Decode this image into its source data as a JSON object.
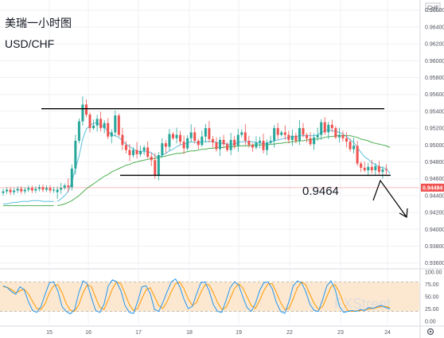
{
  "header": {
    "title": "美瑞一小时图",
    "pair": "USD/CHF",
    "currency_tag": "CHF"
  },
  "annotation": {
    "level_label": "0.9464"
  },
  "last_price_badge": "0.94494",
  "stoch_axis_ticks": [
    "100.00",
    "75.00",
    "50.00",
    "25.00",
    "0.00"
  ],
  "watermark": "FXStreet",
  "colors": {
    "bull": "#26a69a",
    "bear": "#ef5350",
    "ma_fast": "#5bc0de",
    "ma_slow": "#4caf50",
    "stoch_k": "#2196f3",
    "stoch_d": "#ff9800",
    "stoch_band": "#fbe4c8",
    "sr_line": "#000000",
    "price_line": "#ef5350"
  },
  "chart_data": [
    {
      "type": "candlestick",
      "title": "美瑞一小时图",
      "subtitle": "USD/CHF",
      "xlabel": "",
      "ylabel": "",
      "x_ticks": [
        "15",
        "16",
        "17",
        "18",
        "19",
        "22",
        "23",
        "24"
      ],
      "y_ticks": [
        "0.96600",
        "0.96400",
        "0.96200",
        "0.96000",
        "0.95800",
        "0.95600",
        "0.95400",
        "0.95200",
        "0.95000",
        "0.94800",
        "0.94600",
        "0.94400",
        "0.94200",
        "0.94000",
        "0.93800",
        "0.93600"
      ],
      "ylim": [
        0.9355,
        0.9672
      ],
      "grid": true,
      "series": [
        {
          "name": "",
          "kind": "close",
          "values": [
            0.9447,
            0.9449,
            0.9452,
            0.945,
            0.9472,
            0.9505,
            0.9528,
            0.9548,
            0.9536,
            0.952,
            0.9523,
            0.9531,
            0.952,
            0.9526,
            0.951,
            0.9515,
            0.9535,
            0.9512,
            0.95,
            0.9494,
            0.9488,
            0.9494,
            0.9489,
            0.9493,
            0.9497,
            0.9486,
            0.9482,
            0.9464,
            0.9488,
            0.9502,
            0.9498,
            0.9513,
            0.9508,
            0.9512,
            0.9504,
            0.9496,
            0.9508,
            0.9515,
            0.9505,
            0.95,
            0.951,
            0.952,
            0.9507,
            0.9503,
            0.9495,
            0.9506,
            0.9501,
            0.9494,
            0.9506,
            0.9499,
            0.9512,
            0.9515,
            0.9505,
            0.95,
            0.9497,
            0.9503,
            0.9505,
            0.9494,
            0.9503,
            0.9505,
            0.952,
            0.9512,
            0.9515,
            0.9512,
            0.9506,
            0.9511,
            0.9505,
            0.952,
            0.9512,
            0.9508,
            0.9501,
            0.9509,
            0.9512,
            0.9527,
            0.9515,
            0.9524,
            0.952,
            0.9509,
            0.9512,
            0.9508,
            0.9504,
            0.9495,
            0.9499,
            0.9478,
            0.9473,
            0.947,
            0.9474,
            0.947,
            0.9475,
            0.9468,
            0.9471,
            0.947,
            0.9449
          ]
        },
        {
          "name": "",
          "kind": "ma_fast",
          "values": [
            0.9433,
            0.9436,
            0.944,
            0.9445,
            0.9456,
            0.9472,
            0.9487,
            0.9507,
            0.9519,
            0.9523,
            0.9526,
            0.9526,
            0.9524,
            0.9521,
            0.9516,
            0.9512,
            0.9511,
            0.9509,
            0.9505,
            0.9501,
            0.9498,
            0.9495,
            0.9493,
            0.9492,
            0.9492,
            0.9492,
            0.9491,
            0.9487,
            0.9485,
            0.9488,
            0.949,
            0.9493,
            0.9495,
            0.9498,
            0.95,
            0.9501,
            0.9502,
            0.9504,
            0.9503,
            0.9503,
            0.9504,
            0.9504,
            0.9504,
            0.9504,
            0.9503,
            0.9502,
            0.9502,
            0.9501,
            0.9501,
            0.9501,
            0.9503,
            0.9504,
            0.9504,
            0.9504,
            0.9504,
            0.9503,
            0.9502,
            0.9502,
            0.9502,
            0.9503,
            0.9505,
            0.9506,
            0.9507,
            0.9508,
            0.9509,
            0.951,
            0.951,
            0.9511,
            0.9511,
            0.9511,
            0.9511,
            0.9511,
            0.9512,
            0.9515,
            0.9517,
            0.9518,
            0.9517,
            0.9516,
            0.9515,
            0.9513,
            0.951,
            0.9506,
            0.9503,
            0.9497,
            0.9491,
            0.9486,
            0.9483,
            0.9479,
            0.9477,
            0.9474,
            0.9473,
            0.9472,
            0.9466
          ]
        },
        {
          "name": "",
          "kind": "ma_slow",
          "values": [
            0.9428,
            0.9429,
            0.943,
            0.9432,
            0.9434,
            0.9437,
            0.944,
            0.9444,
            0.9448,
            0.9451,
            0.9454,
            0.9457,
            0.946,
            0.9463,
            0.9465,
            0.9468,
            0.947,
            0.9472,
            0.9474,
            0.9476,
            0.9477,
            0.9479,
            0.948,
            0.9481,
            0.9482,
            0.9483,
            0.9484,
            0.9484,
            0.9485,
            0.9486,
            0.9487,
            0.9488,
            0.9489,
            0.949,
            0.949,
            0.9491,
            0.9492,
            0.9493,
            0.9493,
            0.9494,
            0.9495,
            0.9495,
            0.9496,
            0.9496,
            0.9497,
            0.9497,
            0.9497,
            0.9498,
            0.9498,
            0.9498,
            0.9499,
            0.9499,
            0.9499,
            0.9499,
            0.95,
            0.95,
            0.95,
            0.95,
            0.95,
            0.9501,
            0.9501,
            0.9502,
            0.9502,
            0.9503,
            0.9503,
            0.9504,
            0.9504,
            0.9505,
            0.9505,
            0.9506,
            0.9506,
            0.9507,
            0.9507,
            0.9508,
            0.9509,
            0.951,
            0.951,
            0.9511,
            0.9511,
            0.9511,
            0.9511,
            0.9511,
            0.951,
            0.9509,
            0.9507,
            0.9506,
            0.9505,
            0.9503,
            0.9502,
            0.9501,
            0.95,
            0.9499,
            0.9497
          ]
        }
      ],
      "horizontal_levels": [
        {
          "name": "resistance",
          "value": 0.9543,
          "from_index": 10,
          "to_index": 108
        },
        {
          "name": "support",
          "value": 0.9464,
          "from_index": 30,
          "to_index": 108
        },
        {
          "name": "last-price",
          "value": 0.94494,
          "from_index": 0,
          "to_index": 108
        }
      ]
    },
    {
      "type": "line",
      "title": "",
      "xlabel": "",
      "ylabel": "",
      "ylim": [
        0,
        100
      ],
      "y_ticks": [
        "100.00",
        "75.00",
        "50.00",
        "25.00",
        "0.00"
      ],
      "band": [
        20,
        80
      ],
      "series": [
        {
          "name": "",
          "kind": "stoch_k",
          "values": [
            72,
            68,
            60,
            55,
            70,
            64,
            40,
            22,
            18,
            30,
            55,
            78,
            80,
            62,
            30,
            20,
            15,
            24,
            58,
            82,
            76,
            48,
            22,
            18,
            35,
            72,
            84,
            80,
            62,
            32,
            18,
            16,
            40,
            70,
            72,
            56,
            24,
            20,
            38,
            60,
            80,
            86,
            70,
            45,
            26,
            30,
            55,
            78,
            80,
            62,
            34,
            20,
            18,
            42,
            68,
            80,
            74,
            50,
            28,
            20,
            36,
            62,
            78,
            80,
            66,
            38,
            20,
            16,
            40,
            72,
            82,
            78,
            60,
            34,
            22,
            20,
            44,
            72,
            82,
            64,
            30,
            18,
            20,
            22,
            20,
            24,
            22,
            28,
            26,
            30,
            32,
            28,
            25
          ]
        },
        {
          "name": "",
          "kind": "stoch_d",
          "values": [
            70,
            69,
            64,
            58,
            62,
            65,
            56,
            40,
            26,
            24,
            36,
            58,
            72,
            74,
            58,
            36,
            22,
            20,
            34,
            58,
            74,
            70,
            48,
            28,
            24,
            44,
            66,
            80,
            76,
            56,
            34,
            22,
            26,
            46,
            64,
            68,
            50,
            32,
            26,
            40,
            60,
            76,
            80,
            66,
            46,
            32,
            38,
            58,
            74,
            74,
            58,
            38,
            24,
            28,
            46,
            66,
            76,
            68,
            50,
            32,
            26,
            42,
            62,
            76,
            76,
            58,
            38,
            24,
            26,
            46,
            68,
            80,
            74,
            54,
            36,
            24,
            30,
            50,
            70,
            74,
            58,
            36,
            22,
            20,
            21,
            22,
            23,
            25,
            26,
            28,
            30,
            30,
            28
          ]
        }
      ]
    }
  ]
}
